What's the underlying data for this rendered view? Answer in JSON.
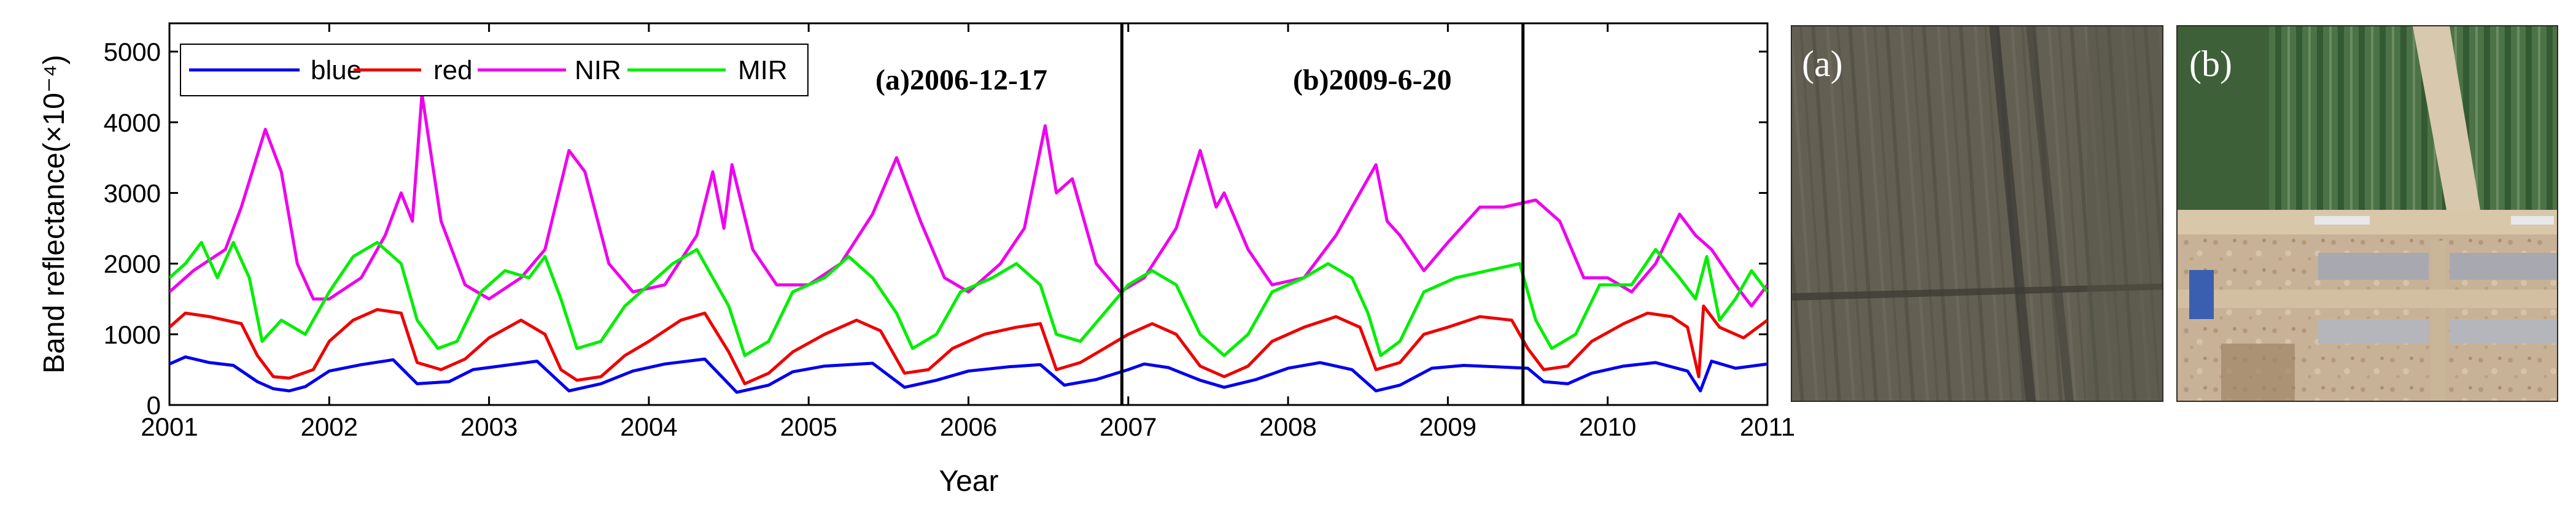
{
  "chart_data": {
    "type": "line",
    "title": "",
    "xlabel": "Year",
    "ylabel": "Band reflectance(×10⁻⁴)",
    "xlim": [
      2001.0,
      2011.0
    ],
    "ylim": [
      0,
      5400
    ],
    "x_ticks": [
      "2001",
      "2002",
      "2003",
      "2004",
      "2005",
      "2006",
      "2007",
      "2008",
      "2009",
      "2010",
      "2011"
    ],
    "y_ticks": [
      "0",
      "1000",
      "2000",
      "3000",
      "4000",
      "5000"
    ],
    "grid": false,
    "legend_position": "top-left",
    "events": [
      {
        "x": 2006.96,
        "label": "(a)2006-12-17"
      },
      {
        "x": 2009.47,
        "label": "(b)2009-6-20"
      }
    ],
    "series": [
      {
        "name": "blue",
        "color": "#0000ee",
        "points": [
          [
            2001.0,
            580
          ],
          [
            2001.1,
            680
          ],
          [
            2001.25,
            600
          ],
          [
            2001.4,
            560
          ],
          [
            2001.55,
            330
          ],
          [
            2001.65,
            230
          ],
          [
            2001.75,
            200
          ],
          [
            2001.85,
            260
          ],
          [
            2002.0,
            480
          ],
          [
            2002.2,
            570
          ],
          [
            2002.4,
            640
          ],
          [
            2002.55,
            300
          ],
          [
            2002.75,
            330
          ],
          [
            2002.9,
            500
          ],
          [
            2003.1,
            560
          ],
          [
            2003.3,
            620
          ],
          [
            2003.5,
            200
          ],
          [
            2003.7,
            300
          ],
          [
            2003.9,
            480
          ],
          [
            2004.1,
            580
          ],
          [
            2004.35,
            650
          ],
          [
            2004.55,
            180
          ],
          [
            2004.75,
            280
          ],
          [
            2004.9,
            470
          ],
          [
            2005.1,
            550
          ],
          [
            2005.4,
            590
          ],
          [
            2005.6,
            250
          ],
          [
            2005.8,
            350
          ],
          [
            2006.0,
            480
          ],
          [
            2006.25,
            540
          ],
          [
            2006.45,
            570
          ],
          [
            2006.6,
            280
          ],
          [
            2006.8,
            360
          ],
          [
            2007.0,
            500
          ],
          [
            2007.1,
            580
          ],
          [
            2007.25,
            530
          ],
          [
            2007.45,
            350
          ],
          [
            2007.6,
            250
          ],
          [
            2007.8,
            360
          ],
          [
            2008.0,
            520
          ],
          [
            2008.2,
            600
          ],
          [
            2008.4,
            500
          ],
          [
            2008.55,
            200
          ],
          [
            2008.7,
            280
          ],
          [
            2008.9,
            520
          ],
          [
            2009.1,
            560
          ],
          [
            2009.3,
            540
          ],
          [
            2009.5,
            520
          ],
          [
            2009.6,
            330
          ],
          [
            2009.75,
            300
          ],
          [
            2009.9,
            450
          ],
          [
            2010.1,
            550
          ],
          [
            2010.3,
            600
          ],
          [
            2010.5,
            480
          ],
          [
            2010.58,
            200
          ],
          [
            2010.65,
            620
          ],
          [
            2010.8,
            520
          ],
          [
            2011.0,
            580
          ]
        ]
      },
      {
        "name": "red",
        "color": "#ee0000",
        "points": [
          [
            2001.0,
            1100
          ],
          [
            2001.1,
            1300
          ],
          [
            2001.25,
            1250
          ],
          [
            2001.45,
            1150
          ],
          [
            2001.55,
            700
          ],
          [
            2001.65,
            400
          ],
          [
            2001.75,
            380
          ],
          [
            2001.9,
            500
          ],
          [
            2002.0,
            900
          ],
          [
            2002.15,
            1200
          ],
          [
            2002.3,
            1350
          ],
          [
            2002.45,
            1300
          ],
          [
            2002.55,
            600
          ],
          [
            2002.7,
            500
          ],
          [
            2002.85,
            650
          ],
          [
            2003.0,
            950
          ],
          [
            2003.2,
            1200
          ],
          [
            2003.35,
            1000
          ],
          [
            2003.45,
            500
          ],
          [
            2003.55,
            350
          ],
          [
            2003.7,
            400
          ],
          [
            2003.85,
            700
          ],
          [
            2004.0,
            900
          ],
          [
            2004.2,
            1200
          ],
          [
            2004.35,
            1300
          ],
          [
            2004.5,
            750
          ],
          [
            2004.6,
            300
          ],
          [
            2004.75,
            450
          ],
          [
            2004.9,
            750
          ],
          [
            2005.1,
            1000
          ],
          [
            2005.3,
            1200
          ],
          [
            2005.45,
            1050
          ],
          [
            2005.6,
            450
          ],
          [
            2005.75,
            500
          ],
          [
            2005.9,
            800
          ],
          [
            2006.1,
            1000
          ],
          [
            2006.3,
            1100
          ],
          [
            2006.45,
            1150
          ],
          [
            2006.55,
            500
          ],
          [
            2006.7,
            600
          ],
          [
            2006.85,
            800
          ],
          [
            2007.0,
            1000
          ],
          [
            2007.15,
            1150
          ],
          [
            2007.3,
            1000
          ],
          [
            2007.45,
            550
          ],
          [
            2007.6,
            400
          ],
          [
            2007.75,
            550
          ],
          [
            2007.9,
            900
          ],
          [
            2008.1,
            1100
          ],
          [
            2008.3,
            1250
          ],
          [
            2008.45,
            1100
          ],
          [
            2008.55,
            500
          ],
          [
            2008.7,
            600
          ],
          [
            2008.85,
            1000
          ],
          [
            2009.0,
            1100
          ],
          [
            2009.2,
            1250
          ],
          [
            2009.4,
            1200
          ],
          [
            2009.5,
            800
          ],
          [
            2009.6,
            500
          ],
          [
            2009.75,
            550
          ],
          [
            2009.9,
            900
          ],
          [
            2010.1,
            1150
          ],
          [
            2010.25,
            1300
          ],
          [
            2010.4,
            1250
          ],
          [
            2010.5,
            1100
          ],
          [
            2010.57,
            400
          ],
          [
            2010.6,
            1400
          ],
          [
            2010.7,
            1100
          ],
          [
            2010.85,
            950
          ],
          [
            2011.0,
            1200
          ]
        ]
      },
      {
        "name": "NIR",
        "color": "#ee00ee",
        "points": [
          [
            2001.0,
            1600
          ],
          [
            2001.15,
            1900
          ],
          [
            2001.35,
            2200
          ],
          [
            2001.45,
            2800
          ],
          [
            2001.6,
            3900
          ],
          [
            2001.7,
            3300
          ],
          [
            2001.8,
            2000
          ],
          [
            2001.9,
            1500
          ],
          [
            2002.0,
            1500
          ],
          [
            2002.2,
            1800
          ],
          [
            2002.35,
            2400
          ],
          [
            2002.45,
            3000
          ],
          [
            2002.52,
            2600
          ],
          [
            2002.58,
            4400
          ],
          [
            2002.7,
            2600
          ],
          [
            2002.85,
            1700
          ],
          [
            2003.0,
            1500
          ],
          [
            2003.2,
            1800
          ],
          [
            2003.35,
            2200
          ],
          [
            2003.5,
            3600
          ],
          [
            2003.6,
            3300
          ],
          [
            2003.75,
            2000
          ],
          [
            2003.9,
            1600
          ],
          [
            2004.1,
            1700
          ],
          [
            2004.3,
            2400
          ],
          [
            2004.4,
            3300
          ],
          [
            2004.47,
            2500
          ],
          [
            2004.52,
            3400
          ],
          [
            2004.65,
            2200
          ],
          [
            2004.8,
            1700
          ],
          [
            2005.0,
            1700
          ],
          [
            2005.2,
            2000
          ],
          [
            2005.4,
            2700
          ],
          [
            2005.55,
            3500
          ],
          [
            2005.7,
            2600
          ],
          [
            2005.85,
            1800
          ],
          [
            2006.0,
            1600
          ],
          [
            2006.2,
            2000
          ],
          [
            2006.35,
            2500
          ],
          [
            2006.48,
            3950
          ],
          [
            2006.55,
            3000
          ],
          [
            2006.65,
            3200
          ],
          [
            2006.8,
            2000
          ],
          [
            2006.95,
            1600
          ],
          [
            2007.1,
            1800
          ],
          [
            2007.3,
            2500
          ],
          [
            2007.45,
            3600
          ],
          [
            2007.55,
            2800
          ],
          [
            2007.6,
            3000
          ],
          [
            2007.75,
            2200
          ],
          [
            2007.9,
            1700
          ],
          [
            2008.1,
            1800
          ],
          [
            2008.3,
            2400
          ],
          [
            2008.45,
            3000
          ],
          [
            2008.55,
            3400
          ],
          [
            2008.62,
            2600
          ],
          [
            2008.7,
            2400
          ],
          [
            2008.85,
            1900
          ],
          [
            2009.0,
            2300
          ],
          [
            2009.2,
            2800
          ],
          [
            2009.35,
            2800
          ],
          [
            2009.55,
            2900
          ],
          [
            2009.7,
            2600
          ],
          [
            2009.85,
            1800
          ],
          [
            2010.0,
            1800
          ],
          [
            2010.15,
            1600
          ],
          [
            2010.3,
            2000
          ],
          [
            2010.45,
            2700
          ],
          [
            2010.55,
            2400
          ],
          [
            2010.65,
            2200
          ],
          [
            2010.8,
            1700
          ],
          [
            2010.9,
            1400
          ],
          [
            2011.0,
            1700
          ]
        ]
      },
      {
        "name": "MIR",
        "color": "#00ee00",
        "points": [
          [
            2001.0,
            1800
          ],
          [
            2001.1,
            2000
          ],
          [
            2001.2,
            2300
          ],
          [
            2001.3,
            1800
          ],
          [
            2001.4,
            2300
          ],
          [
            2001.5,
            1800
          ],
          [
            2001.58,
            900
          ],
          [
            2001.7,
            1200
          ],
          [
            2001.85,
            1000
          ],
          [
            2002.0,
            1600
          ],
          [
            2002.15,
            2100
          ],
          [
            2002.3,
            2300
          ],
          [
            2002.45,
            2000
          ],
          [
            2002.55,
            1200
          ],
          [
            2002.68,
            800
          ],
          [
            2002.8,
            900
          ],
          [
            2002.95,
            1600
          ],
          [
            2003.1,
            1900
          ],
          [
            2003.25,
            1800
          ],
          [
            2003.35,
            2100
          ],
          [
            2003.45,
            1500
          ],
          [
            2003.55,
            800
          ],
          [
            2003.7,
            900
          ],
          [
            2003.85,
            1400
          ],
          [
            2004.0,
            1700
          ],
          [
            2004.15,
            2000
          ],
          [
            2004.3,
            2200
          ],
          [
            2004.4,
            1800
          ],
          [
            2004.5,
            1400
          ],
          [
            2004.6,
            700
          ],
          [
            2004.75,
            900
          ],
          [
            2004.9,
            1600
          ],
          [
            2005.1,
            1800
          ],
          [
            2005.25,
            2100
          ],
          [
            2005.4,
            1800
          ],
          [
            2005.55,
            1300
          ],
          [
            2005.65,
            800
          ],
          [
            2005.8,
            1000
          ],
          [
            2005.95,
            1600
          ],
          [
            2006.15,
            1800
          ],
          [
            2006.3,
            2000
          ],
          [
            2006.45,
            1700
          ],
          [
            2006.55,
            1000
          ],
          [
            2006.7,
            900
          ],
          [
            2006.85,
            1300
          ],
          [
            2007.0,
            1700
          ],
          [
            2007.15,
            1900
          ],
          [
            2007.3,
            1700
          ],
          [
            2007.45,
            1000
          ],
          [
            2007.6,
            700
          ],
          [
            2007.75,
            1000
          ],
          [
            2007.9,
            1600
          ],
          [
            2008.1,
            1800
          ],
          [
            2008.25,
            2000
          ],
          [
            2008.4,
            1800
          ],
          [
            2008.5,
            1300
          ],
          [
            2008.58,
            700
          ],
          [
            2008.7,
            900
          ],
          [
            2008.85,
            1600
          ],
          [
            2009.05,
            1800
          ],
          [
            2009.25,
            1900
          ],
          [
            2009.45,
            2000
          ],
          [
            2009.55,
            1200
          ],
          [
            2009.65,
            800
          ],
          [
            2009.8,
            1000
          ],
          [
            2009.95,
            1700
          ],
          [
            2010.15,
            1700
          ],
          [
            2010.3,
            2200
          ],
          [
            2010.45,
            1800
          ],
          [
            2010.55,
            1500
          ],
          [
            2010.62,
            2100
          ],
          [
            2010.7,
            1200
          ],
          [
            2010.8,
            1500
          ],
          [
            2010.9,
            1900
          ],
          [
            2011.0,
            1600
          ]
        ]
      }
    ]
  },
  "photos": [
    {
      "label": "(a)"
    },
    {
      "label": "(b)"
    }
  ]
}
